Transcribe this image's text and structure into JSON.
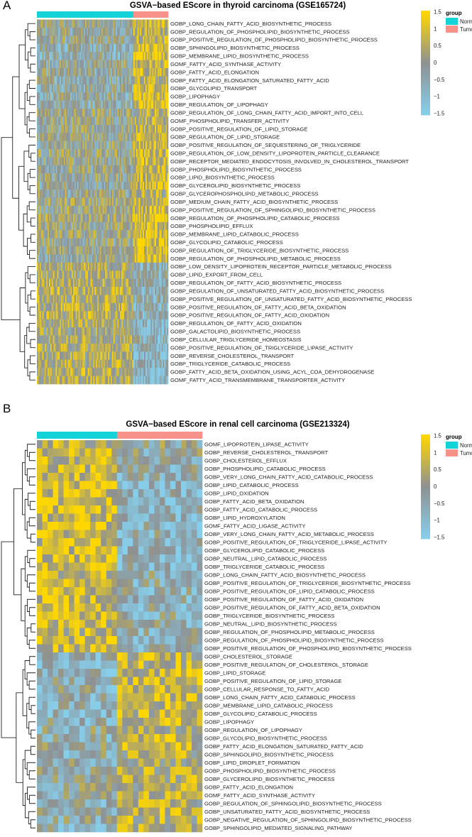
{
  "colors": {
    "low": "#87CEEB",
    "mid": "#8E9192",
    "high": "#FFD700",
    "Normal": "#14D3D8",
    "Tumor": "#F7928B"
  },
  "chart_data": [
    {
      "type": "heatmap",
      "panel": "A",
      "title": "GSVA−based EScore in thyroid carcinoma (GSE165724)",
      "legend": {
        "ticks": [
          "1.5",
          "1",
          "0.5",
          "0",
          "−0.5",
          "−1",
          "−1.5"
        ],
        "range": [
          -1.5,
          1.5
        ],
        "group_title": "group",
        "groups": [
          "Normal",
          "Tumor"
        ],
        "placement": "top-right"
      },
      "column_groups": [
        {
          "name": "Normal",
          "count": 72
        },
        {
          "name": "Tumor",
          "count": 26
        }
      ],
      "row_dendrogram": true,
      "rows": [
        {
          "label": "GOBP_LONG_CHAIN_FATTY_ACID_BIOSYNTHETIC_PROCESS",
          "mean": [
            -0.1,
            0.7
          ]
        },
        {
          "label": "GOBP_REGULATION_OF_PHOSPHOLIPID_BIOSYNTHETIC_PROCESS",
          "mean": [
            -0.2,
            0.6
          ]
        },
        {
          "label": "GOBP_POSITIVE_REGULATION_OF_PHOSPHOLIPID_BIOSYNTHETIC_PROCESS",
          "mean": [
            -0.2,
            0.6
          ]
        },
        {
          "label": "GOBP_SPHINGOLIPID_BIOSYNTHETIC_PROCESS",
          "mean": [
            -0.5,
            1.2
          ]
        },
        {
          "label": "GOBP_MEMBRANE_LIPID_BIOSYNTHETIC_PROCESS",
          "mean": [
            -0.5,
            1.1
          ]
        },
        {
          "label": "GOMF_FATTY_ACID_SYNTHASE_ACTIVITY",
          "mean": [
            -0.2,
            0.6
          ]
        },
        {
          "label": "GOBP_FATTY_ACID_ELONGATION",
          "mean": [
            -0.3,
            0.7
          ]
        },
        {
          "label": "GOBP_FATTY_ACID_ELONGATION_SATURATED_FATTY_ACID",
          "mean": [
            -0.3,
            0.6
          ]
        },
        {
          "label": "GOBP_GLYCOLIPID_TRANSPORT",
          "mean": [
            -0.3,
            1.0
          ]
        },
        {
          "label": "GOBP_LIPOPHAGY",
          "mean": [
            -0.4,
            1.0
          ]
        },
        {
          "label": "GOBP_REGULATION_OF_LIPOPHAGY",
          "mean": [
            -0.4,
            1.1
          ]
        },
        {
          "label": "GOBP_REGULATION_OF_LONG_CHAIN_FATTY_ACID_IMPORT_INTO_CELL",
          "mean": [
            0.0,
            0.5
          ]
        },
        {
          "label": "GOMF_PHOSPHOLIPID_TRANSFER_ACTIVITY",
          "mean": [
            0.0,
            0.6
          ]
        },
        {
          "label": "GOBP_POSITIVE_REGULATION_OF_LIPID_STORAGE",
          "mean": [
            -0.1,
            0.6
          ]
        },
        {
          "label": "GOBP_REGULATION_OF_LIPID_STORAGE",
          "mean": [
            -0.1,
            0.5
          ]
        },
        {
          "label": "GOBP_POSITIVE_REGULATION_OF_SEQUESTERING_OF_TRIGLYCERIDE",
          "mean": [
            -0.1,
            0.8
          ]
        },
        {
          "label": "GOBP_REGULATION_OF_LOW_DENSITY_LIPOPROTEIN_PARTICLE_CLEARANCE",
          "mean": [
            0.0,
            0.9
          ]
        },
        {
          "label": "GOBP_RECEPTOR_MEDIATED_ENDOCYTOSIS_INVOLVED_IN_CHOLESTEROL_TRANSPORT",
          "mean": [
            -0.1,
            0.8
          ]
        },
        {
          "label": "GOBP_PHOSPHOLIPID_BIOSYNTHETIC_PROCESS",
          "mean": [
            -0.1,
            0.5
          ]
        },
        {
          "label": "GOBP_LIPID_BIOSYNTHETIC_PROCESS",
          "mean": [
            -0.1,
            0.8
          ]
        },
        {
          "label": "GOBP_GLYCEROLIPID_BIOSYNTHETIC_PROCESS",
          "mean": [
            -0.2,
            0.8
          ]
        },
        {
          "label": "GOBP_GLYCEROPHOSPHOLIPID_METABOLIC_PROCESS",
          "mean": [
            -0.1,
            0.5
          ]
        },
        {
          "label": "GOBP_MEDIUM_CHAIN_FATTY_ACID_BIOSYNTHETIC_PROCESS",
          "mean": [
            0.1,
            0.6
          ]
        },
        {
          "label": "GOBP_POSITIVE_REGULATION_OF_SPHINGOLIPID_BIOSYNTHETIC_PROCESS",
          "mean": [
            0.0,
            0.9
          ]
        },
        {
          "label": "GOBP_REGULATION_OF_PHOSPHOLIPID_CATABOLIC_PROCESS",
          "mean": [
            0.1,
            0.9
          ]
        },
        {
          "label": "GOBP_PHOSPHOLIPID_EFFLUX",
          "mean": [
            0.0,
            0.8
          ]
        },
        {
          "label": "GOBP_MEMBRANE_LIPID_CATABOLIC_PROCESS",
          "mean": [
            0.0,
            0.9
          ]
        },
        {
          "label": "GOBP_GLYCOLIPID_CATABOLIC_PROCESS",
          "mean": [
            -0.1,
            1.0
          ]
        },
        {
          "label": "GOBP_REGULATION_OF_TRIGLYCERIDE_BIOSYNTHETIC_PROCESS",
          "mean": [
            -0.1,
            1.1
          ]
        },
        {
          "label": "GOBP_REGULATION_OF_PHOSPHOLIPID_METABOLIC_PROCESS",
          "mean": [
            -0.2,
            1.1
          ]
        },
        {
          "label": "GOBP_LOW_DENSITY_LIPOPROTEIN_RECEPTOR_PARTICLE_METABOLIC_PROCESS",
          "mean": [
            0.3,
            -0.6
          ]
        },
        {
          "label": "GOBP_LIPID_EXPORT_FROM_CELL",
          "mean": [
            0.4,
            -0.5
          ]
        },
        {
          "label": "GOBP_REGULATION_OF_FATTY_ACID_BIOSYNTHETIC_PROCESS",
          "mean": [
            0.5,
            -0.5
          ]
        },
        {
          "label": "GOBP_REGULATION_OF_UNSATURATED_FATTY_ACID_BIOSYNTHETIC_PROCESS",
          "mean": [
            0.5,
            -0.6
          ]
        },
        {
          "label": "GOBP_POSITIVE_REGULATION_OF_UNSATURATED_FATTY_ACID_BIOSYNTHETIC_PROCESS",
          "mean": [
            0.4,
            -0.6
          ]
        },
        {
          "label": "GOBP_POSITIVE_REGULATION_OF_FATTY_ACID_BETA_OXIDATION",
          "mean": [
            0.5,
            -0.6
          ]
        },
        {
          "label": "GOBP_POSITIVE_REGULATION_OF_FATTY_ACID_OXIDATION",
          "mean": [
            0.5,
            -0.6
          ]
        },
        {
          "label": "GOBP_REGULATION_OF_FATTY_ACID_OXIDATION",
          "mean": [
            0.3,
            -0.8
          ]
        },
        {
          "label": "GOBP_GALACTOLIPID_BIOSYNTHETIC_PROCESS",
          "mean": [
            0.2,
            -0.9
          ]
        },
        {
          "label": "GOBP_CELLULAR_TRIGLYCERIDE_HOMEOSTASIS",
          "mean": [
            0.4,
            -0.6
          ]
        },
        {
          "label": "GOBP_POSITIVE_REGULATION_OF_TRIGLYCERIDE_LIPASE_ACTIVITY",
          "mean": [
            0.4,
            -0.7
          ]
        },
        {
          "label": "GOBP_REVERSE_CHOLESTEROL_TRANSPORT",
          "mean": [
            0.4,
            -0.8
          ]
        },
        {
          "label": "GOBP_TRIGLYCERIDE_CATABOLIC_PROCESS",
          "mean": [
            0.4,
            -0.7
          ]
        },
        {
          "label": "GOBP_FATTY_ACID_BETA_OXIDATION_USING_ACYL_COA_DEHYDROGENASE",
          "mean": [
            0.5,
            -0.8
          ]
        },
        {
          "label": "GOMF_FATTY_ACID_TRANSMEMBRANE_TRANSPORTER_ACTIVITY",
          "mean": [
            0.5,
            -0.9
          ]
        }
      ],
      "cluster_split_after_row": 30
    },
    {
      "type": "heatmap",
      "panel": "B",
      "title": "GSVA−based EScore in renal cell carcinoma (GSE213324)",
      "legend": {
        "ticks": [
          "1.5",
          "1",
          "0.5",
          "0",
          "−0.5",
          "−1",
          "−1.5"
        ],
        "range": [
          -1.5,
          1.5
        ],
        "group_title": "group",
        "groups": [
          "Normal",
          "Tumor"
        ],
        "placement": "top-right"
      },
      "column_groups": [
        {
          "name": "Normal",
          "count": 15
        },
        {
          "name": "Tumor",
          "count": 16
        }
      ],
      "row_dendrogram": true,
      "rows": [
        {
          "label": "GOMF_LIPOPROTEIN_LIPASE_ACTIVITY",
          "mean": [
            0.6,
            -0.2
          ]
        },
        {
          "label": "GOBP_REVERSE_CHOLESTEROL_TRANSPORT",
          "mean": [
            0.7,
            -0.4
          ]
        },
        {
          "label": "GOBP_CHOLESTEROL_EFFLUX",
          "mean": [
            0.8,
            -0.4
          ]
        },
        {
          "label": "GOBP_PHOSPHOLIPID_CATABOLIC_PROCESS",
          "mean": [
            0.9,
            -0.6
          ]
        },
        {
          "label": "GOBP_VERY_LONG_CHAIN_FATTY_ACID_CATABOLIC_PROCESS",
          "mean": [
            0.9,
            -0.6
          ]
        },
        {
          "label": "GOBP_LIPID_CATABOLIC_PROCESS",
          "mean": [
            1.0,
            -0.8
          ]
        },
        {
          "label": "GOBP_LIPID_OXIDATION",
          "mean": [
            1.0,
            -0.8
          ]
        },
        {
          "label": "GOBP_FATTY_ACID_BETA_OXIDATION",
          "mean": [
            1.0,
            -0.8
          ]
        },
        {
          "label": "GOBP_FATTY_ACID_CATABOLIC_PROCESS",
          "mean": [
            1.0,
            -0.8
          ]
        },
        {
          "label": "GOBP_LIPID_HYDROXYLATION",
          "mean": [
            0.9,
            -0.7
          ]
        },
        {
          "label": "GOMF_FATTY_ACID_LIGASE_ACTIVITY",
          "mean": [
            0.9,
            -0.7
          ]
        },
        {
          "label": "GOBP_VERY_LONG_CHAIN_FATTY_ACID_METABOLIC_PROCESS",
          "mean": [
            0.8,
            -0.6
          ]
        },
        {
          "label": "GOBP_POSITIVE_REGULATION_OF_TRIGLYCERIDE_LIPASE_ACTIVITY",
          "mean": [
            0.8,
            -0.8
          ]
        },
        {
          "label": "GOBP_GLYCEROLIPID_CATABOLIC_PROCESS",
          "mean": [
            0.9,
            -0.8
          ]
        },
        {
          "label": "GOBP_NEUTRAL_LIPID_CATABOLIC_PROCESS",
          "mean": [
            0.9,
            -0.8
          ]
        },
        {
          "label": "GOBP_TRIGLYCERIDE_CATABOLIC_PROCESS",
          "mean": [
            0.9,
            -0.7
          ]
        },
        {
          "label": "GOBP_LONG_CHAIN_FATTY_ACID_BIOSYNTHETIC_PROCESS",
          "mean": [
            0.8,
            -0.5
          ]
        },
        {
          "label": "GOBP_POSITIVE_REGULATION_OF_TRIGLYCERIDE_BIOSYNTHETIC_PROCESS",
          "mean": [
            0.9,
            -0.5
          ]
        },
        {
          "label": "GOBP_POSITIVE_REGULATION_OF_LIPID_CATABOLIC_PROCESS",
          "mean": [
            0.9,
            -0.6
          ]
        },
        {
          "label": "GOBP_POSITIVE_REGULATION_OF_FATTY_ACID_OXIDATION",
          "mean": [
            0.9,
            -0.6
          ]
        },
        {
          "label": "GOBP_POSITIVE_REGULATION_OF_FATTY_ACID_BETA_OXIDATION",
          "mean": [
            0.8,
            -0.6
          ]
        },
        {
          "label": "GOBP_TRIGLYCERIDE_BIOSYNTHETIC_PROCESS",
          "mean": [
            0.8,
            -0.5
          ]
        },
        {
          "label": "GOBP_NEUTRAL_LIPID_BIOSYNTHETIC_PROCESS",
          "mean": [
            0.8,
            -0.5
          ]
        },
        {
          "label": "GOBP_REGULATION_OF_PHOSPHOLIPID_METABOLIC_PROCESS",
          "mean": [
            0.7,
            -0.5
          ]
        },
        {
          "label": "GOBP_REGULATION_OF_PHOSPHOLIPID_BIOSYNTHETIC_PROCESS",
          "mean": [
            0.8,
            -0.6
          ]
        },
        {
          "label": "GOBP_POSITIVE_REGULATION_OF_PHOSPHOLIPID_BIOSYNTHETIC_PROCESS",
          "mean": [
            0.8,
            -0.6
          ]
        },
        {
          "label": "GOBP_CHOLESTEROL_STORAGE",
          "mean": [
            -0.6,
            0.6
          ]
        },
        {
          "label": "GOBP_POSITIVE_REGULATION_OF_CHOLESTEROL_STORAGE",
          "mean": [
            -0.6,
            0.5
          ]
        },
        {
          "label": "GOBP_LIPID_STORAGE",
          "mean": [
            -0.6,
            0.7
          ]
        },
        {
          "label": "GOBP_POSITIVE_REGULATION_OF_LIPID_STORAGE",
          "mean": [
            -0.5,
            0.7
          ]
        },
        {
          "label": "GOBP_CELLULAR_RESPONSE_TO_FATTY_ACID",
          "mean": [
            -0.5,
            0.5
          ]
        },
        {
          "label": "GOBP_LONG_CHAIN_FATTY_ACID_CATABOLIC_PROCESS",
          "mean": [
            -0.6,
            0.8
          ]
        },
        {
          "label": "GOBP_MEMBRANE_LIPID_CATABOLIC_PROCESS",
          "mean": [
            -0.7,
            0.7
          ]
        },
        {
          "label": "GOBP_GLYCOLIPID_CATABOLIC_PROCESS",
          "mean": [
            -0.7,
            0.7
          ]
        },
        {
          "label": "GOBP_LIPOPHAGY",
          "mean": [
            -0.5,
            0.7
          ]
        },
        {
          "label": "GOBP_REGULATION_OF_LIPOPHAGY",
          "mean": [
            -0.4,
            0.6
          ]
        },
        {
          "label": "GOBP_GLYCOLIPID_BIOSYNTHETIC_PROCESS",
          "mean": [
            -0.5,
            0.7
          ]
        },
        {
          "label": "GOBP_FATTY_ACID_ELONGATION_SATURATED_FATTY_ACID",
          "mean": [
            -0.4,
            0.6
          ]
        },
        {
          "label": "GOBP_SPHINGOLIPID_BIOSYNTHETIC_PROCESS",
          "mean": [
            -0.5,
            0.5
          ]
        },
        {
          "label": "GOBP_LIPID_DROPLET_FORMATION",
          "mean": [
            -0.3,
            0.4
          ]
        },
        {
          "label": "GOBP_PHOSPHOLIPID_BIOSYNTHETIC_PROCESS",
          "mean": [
            -0.4,
            0.4
          ]
        },
        {
          "label": "GOBP_GLYCEROLIPID_BIOSYNTHETIC_PROCESS",
          "mean": [
            -0.4,
            0.4
          ]
        },
        {
          "label": "GOBP_FATTY_ACID_ELONGATION",
          "mean": [
            -0.3,
            0.4
          ]
        },
        {
          "label": "GOMF_FATTY_ACID_SYNTHASE_ACTIVITY",
          "mean": [
            -0.3,
            0.5
          ]
        },
        {
          "label": "GOBP_REGULATION_OF_SPHINGOLIPID_BIOSYNTHETIC_PROCESS",
          "mean": [
            -0.5,
            0.4
          ]
        },
        {
          "label": "GOBP_UNSATURATED_FATTY_ACID_BIOSYNTHETIC_PROCESS",
          "mean": [
            -0.4,
            0.6
          ]
        },
        {
          "label": "GOBP_NEGATIVE_REGULATION_OF_SPHINGOLIPID_BIOSYNTHETIC_PROCESS",
          "mean": [
            -0.4,
            0.5
          ]
        },
        {
          "label": "GOBP_SPHINGOLIPID_MEDIATED_SIGNALING_PATHWAY",
          "mean": [
            -0.5,
            0.6
          ]
        }
      ],
      "cluster_split_after_row": 26
    }
  ]
}
